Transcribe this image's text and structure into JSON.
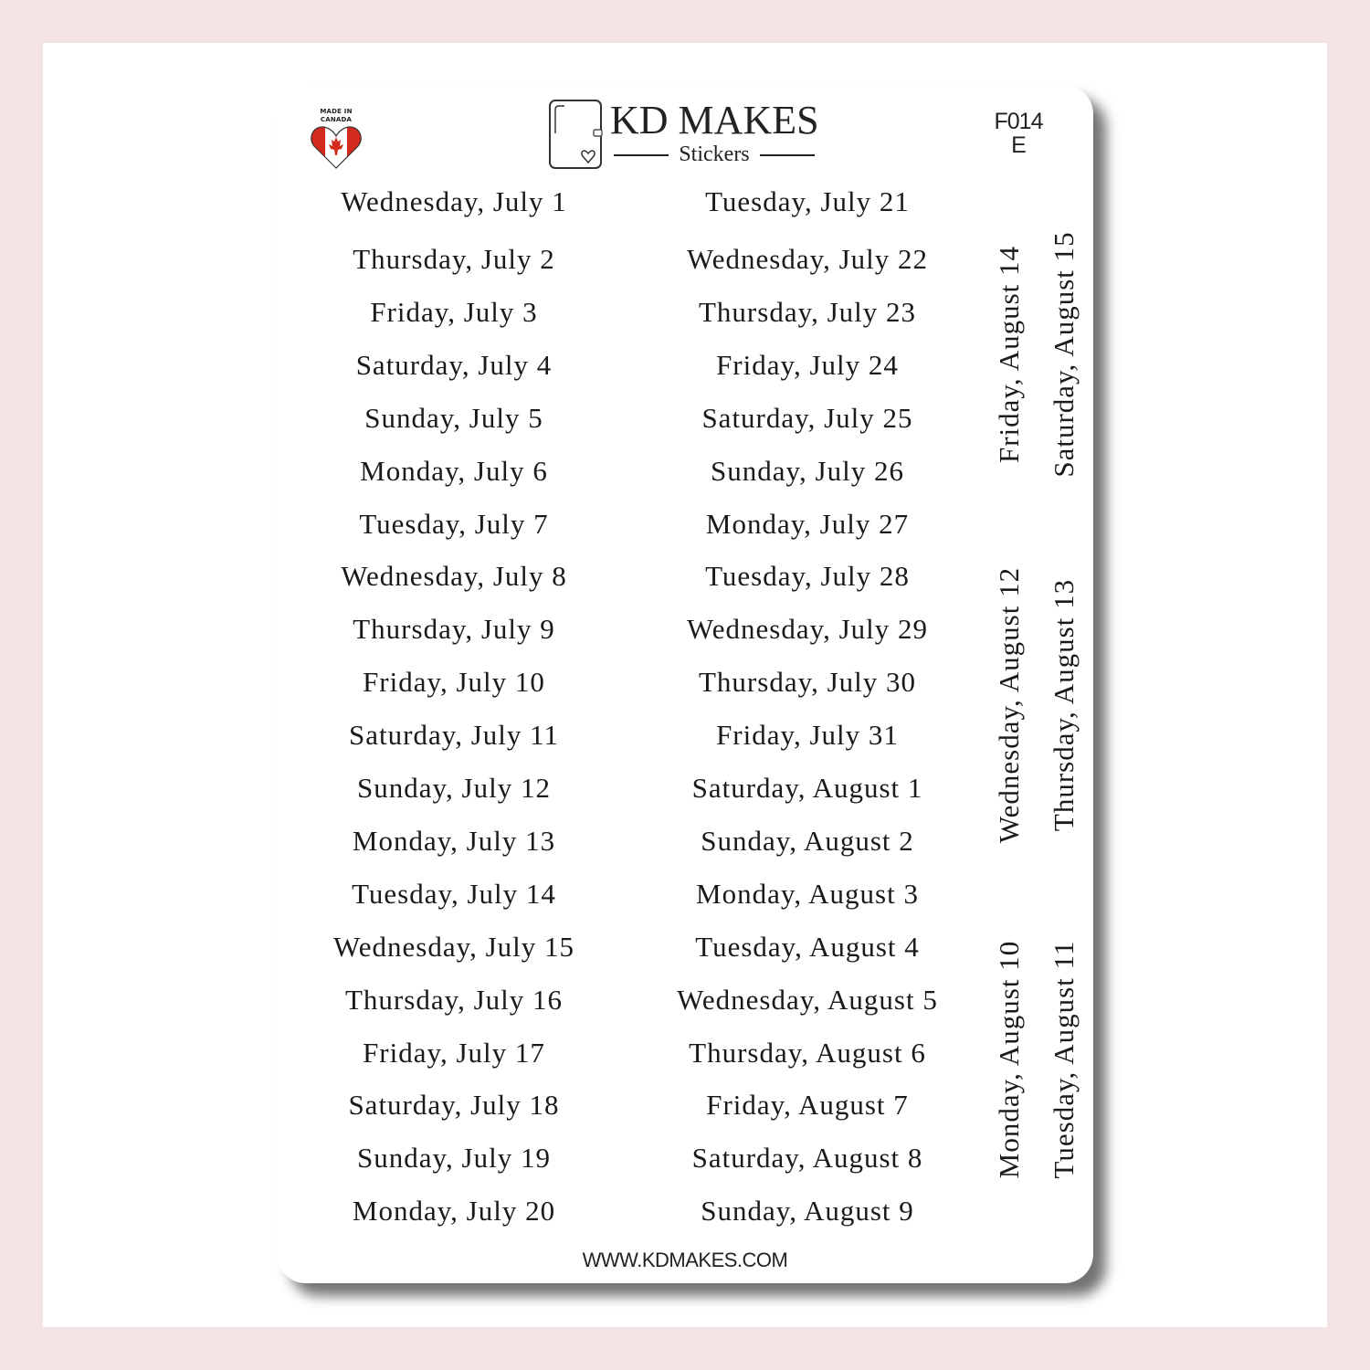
{
  "badge": {
    "text": "MADE IN CANADA",
    "icon": "canada-flag-heart-icon",
    "colors": {
      "red": "#d52b1e",
      "white": "#ffffff"
    }
  },
  "logo": {
    "title": "KD MAKES",
    "subtitle": "Stickers",
    "icon": "planner-heart-icon"
  },
  "product_code": {
    "line1": "F014",
    "line2": "E"
  },
  "left_column": [
    "Wednesday, July 1",
    "Thursday, July 2",
    "Friday, July 3",
    "Saturday, July 4",
    "Sunday, July 5",
    "Monday, July 6",
    "Tuesday, July 7",
    "Wednesday, July 8",
    "Thursday, July 9",
    "Friday, July 10",
    "Saturday, July 11",
    "Sunday, July 12",
    "Monday, July 13",
    "Tuesday, July 14",
    "Wednesday, July 15",
    "Thursday, July 16",
    "Friday, July 17",
    "Saturday, July 18",
    "Sunday, July 19",
    "Monday, July 20"
  ],
  "right_column": [
    "Tuesday, July 21",
    "Wednesday, July 22",
    "Thursday, July 23",
    "Friday, July 24",
    "Saturday, July 25",
    "Sunday, July 26",
    "Monday, July 27",
    "Tuesday, July 28",
    "Wednesday, July 29",
    "Thursday, July 30",
    "Friday, July 31",
    "Saturday, August 1",
    "Sunday, August 2",
    "Monday, August 3",
    "Tuesday, August 4",
    "Wednesday, August 5",
    "Thursday, August 6",
    "Friday, August 7",
    "Saturday, August 8",
    "Sunday, August 9"
  ],
  "vertical": [
    "Friday, August 14",
    "Saturday, August 15",
    "Wednesday, August 12",
    "Thursday, August 13",
    "Monday, August 10",
    "Tuesday, August 11"
  ],
  "footer": "WWW.KDMAKES.COM",
  "colors": {
    "background": "#f3e3e3",
    "sheet": "#ffffff",
    "text": "#1a1a1a"
  }
}
